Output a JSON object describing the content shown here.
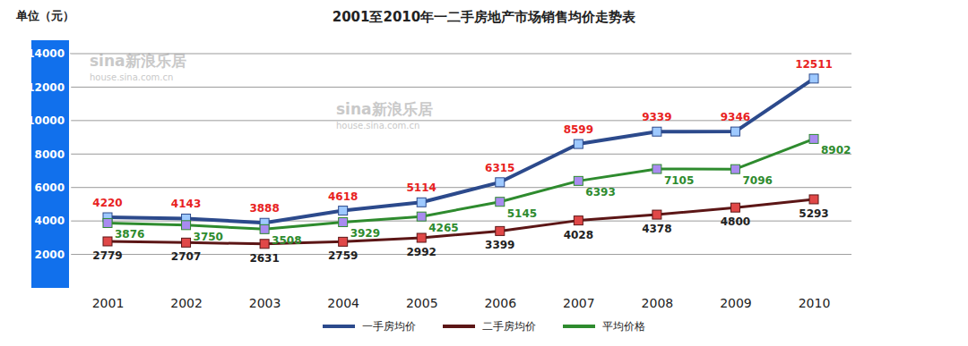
{
  "chart_data": {
    "type": "line",
    "title": "2001至2010年一二手房地产市场销售均价走势表",
    "y_label": "单位（元）",
    "annotations": [
      "sina新浪乐居",
      "house.sina.com.cn"
    ],
    "categories": [
      "2001",
      "2002",
      "2003",
      "2004",
      "2005",
      "2006",
      "2007",
      "2008",
      "2009",
      "2010"
    ],
    "series": [
      {
        "name": "一手房均价",
        "color": "#2c4a8c",
        "marker": "square",
        "values": [
          4220,
          4143,
          3888,
          4618,
          5114,
          6315,
          8599,
          9339,
          9346,
          12511
        ]
      },
      {
        "name": "二手房均价",
        "color": "#5c1616",
        "marker": "square",
        "values": [
          2779,
          2707,
          2631,
          2759,
          2992,
          3399,
          4028,
          4378,
          4800,
          5293
        ]
      },
      {
        "name": "平均价格",
        "color": "#2e8b2e",
        "marker": "square",
        "values": [
          3876,
          3750,
          3508,
          3929,
          4265,
          5145,
          6393,
          7105,
          7096,
          8902
        ]
      }
    ],
    "ylim": [
      0,
      14000
    ],
    "yticks": [
      2000,
      4000,
      6000,
      8000,
      10000,
      12000,
      14000
    ],
    "grid": true,
    "data_labels": true,
    "legend": "bottom"
  }
}
